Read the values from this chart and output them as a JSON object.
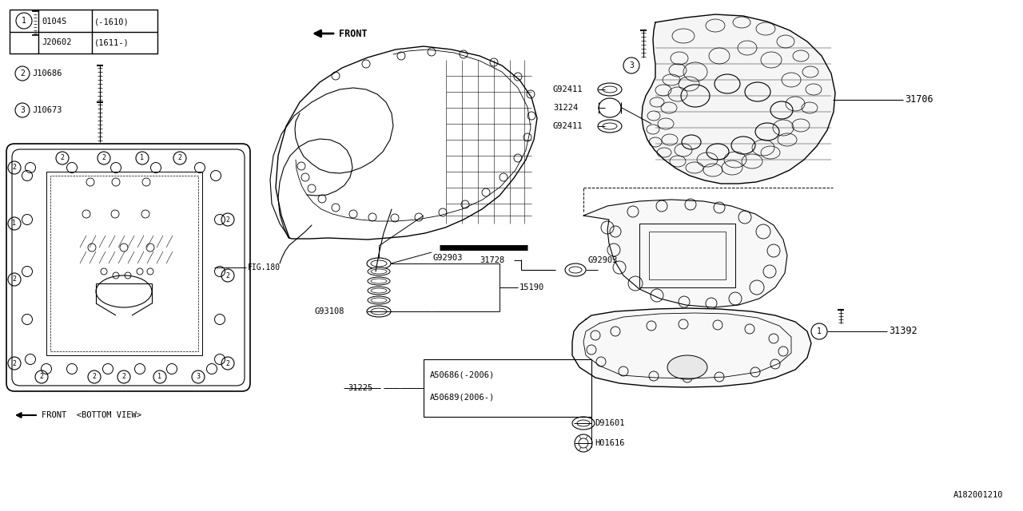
{
  "bg_color": "#ffffff",
  "line_color": "#000000",
  "fig_code": "A182001210",
  "table_parts": [
    {
      "sym": "1",
      "num": "0104S",
      "range": "(-1610)"
    },
    {
      "sym": "1",
      "num": "J20602",
      "range": "(1611-)"
    }
  ],
  "bolt_parts": [
    {
      "sym": "2",
      "num": "J10686"
    },
    {
      "sym": "3",
      "num": "J10673"
    }
  ],
  "valve_labels": [
    "G92411",
    "31224",
    "G92411"
  ],
  "center_labels": [
    "G92903",
    "15190",
    "G93108"
  ],
  "lower_labels": [
    "31728",
    "G92903"
  ],
  "box_labels": [
    "A50686(-2006)",
    "A50689(2006-)"
  ],
  "bottom_labels": [
    "D91601",
    "H01616"
  ],
  "right_labels": [
    "31706",
    "31392"
  ],
  "fig180": "FIG.180",
  "part_31225": "31225",
  "front_text": "FRONT",
  "bottom_view_text": "FRONT  <BOTTOM VIEW>"
}
